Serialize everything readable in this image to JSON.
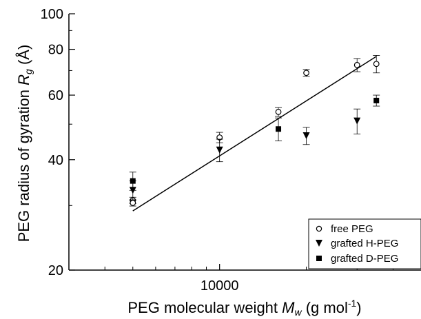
{
  "chart_data": {
    "type": "scatter",
    "title": "",
    "xlabel": {
      "text": "PEG molecular weight ",
      "var": "M",
      "sub": "w",
      "unit_pre": " (g mol",
      "sup": "-1",
      "unit_post": ")"
    },
    "ylabel": {
      "text": "PEG radius of gyration ",
      "var": "R",
      "sub": "g",
      "unit": " (Å)"
    },
    "xscale": "log",
    "yscale": "log",
    "xlim": [
      3000,
      50000
    ],
    "ylim": [
      20,
      100
    ],
    "xticks": [
      {
        "value": 10000,
        "label": "10000"
      }
    ],
    "yticks": [
      {
        "value": 20,
        "label": "20"
      },
      {
        "value": 40,
        "label": "40"
      },
      {
        "value": 60,
        "label": "60"
      },
      {
        "value": 80,
        "label": "80"
      },
      {
        "value": 100,
        "label": "100"
      }
    ],
    "legend_position": "bottom-right",
    "series": [
      {
        "name": "free PEG",
        "marker": "circle-open",
        "points": [
          {
            "x": 5000,
            "y": 31.0,
            "err": 0.6
          },
          {
            "x": 5000,
            "y": 30.5,
            "err": 0.6
          },
          {
            "x": 10000,
            "y": 46.0,
            "err": 1.5
          },
          {
            "x": 16000,
            "y": 54.0,
            "err": 1.5
          },
          {
            "x": 20000,
            "y": 69.0,
            "err": 1.5
          },
          {
            "x": 30000,
            "y": 72.5,
            "err": 3.0
          },
          {
            "x": 35000,
            "y": 73.0,
            "err": 4.0
          }
        ]
      },
      {
        "name": "grafted H-PEG",
        "marker": "triangle-down-filled",
        "points": [
          {
            "x": 5000,
            "y": 33.0,
            "err": 2.0
          },
          {
            "x": 10000,
            "y": 42.5,
            "err": 3.0
          },
          {
            "x": 20000,
            "y": 46.5,
            "err": 2.5
          },
          {
            "x": 30000,
            "y": 51.0,
            "err": 4.0
          }
        ]
      },
      {
        "name": "grafted D-PEG",
        "marker": "square-filled",
        "points": [
          {
            "x": 5000,
            "y": 35.0,
            "err": 2.0
          },
          {
            "x": 16000,
            "y": 48.5,
            "err": 3.5
          },
          {
            "x": 35000,
            "y": 58.0,
            "err": 2.0
          }
        ]
      }
    ],
    "fit_line": {
      "x": [
        5000,
        35000
      ],
      "y": [
        29.0,
        76.5
      ]
    }
  }
}
